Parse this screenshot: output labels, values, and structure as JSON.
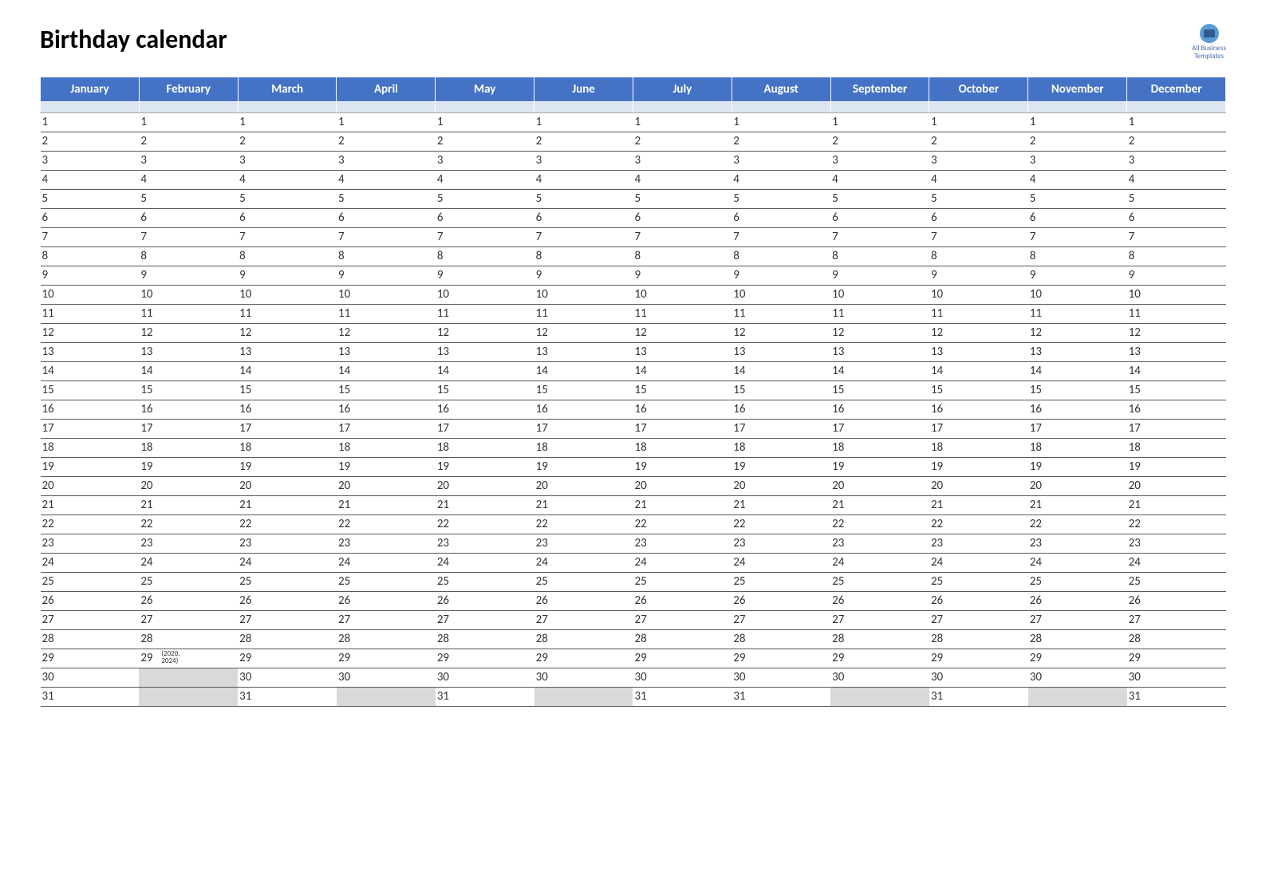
{
  "title": "Birthday calendar",
  "logo": {
    "line1": "All Business",
    "line2": "Templates"
  },
  "colors": {
    "header_bg": "#4472c4",
    "header_text": "#ffffff",
    "spacer_bg": "#dce6f2",
    "row_border": "#595959",
    "inactive_bg": "#d9d9d9",
    "background": "#ffffff",
    "title_color": "#000000"
  },
  "typography": {
    "title_fontsize": 32,
    "title_weight": 700,
    "header_fontsize": 15,
    "cell_fontsize": 15,
    "note_fontsize": 9
  },
  "months": [
    {
      "name": "January",
      "days": 31,
      "notes": {}
    },
    {
      "name": "February",
      "days": 29,
      "notes": {
        "29": "(2020, 2024)"
      }
    },
    {
      "name": "March",
      "days": 31,
      "notes": {}
    },
    {
      "name": "April",
      "days": 30,
      "notes": {}
    },
    {
      "name": "May",
      "days": 31,
      "notes": {}
    },
    {
      "name": "June",
      "days": 30,
      "notes": {}
    },
    {
      "name": "July",
      "days": 31,
      "notes": {}
    },
    {
      "name": "August",
      "days": 31,
      "notes": {}
    },
    {
      "name": "September",
      "days": 30,
      "notes": {}
    },
    {
      "name": "October",
      "days": 31,
      "notes": {}
    },
    {
      "name": "November",
      "days": 30,
      "notes": {}
    },
    {
      "name": "December",
      "days": 31,
      "notes": {}
    }
  ],
  "max_rows": 31
}
